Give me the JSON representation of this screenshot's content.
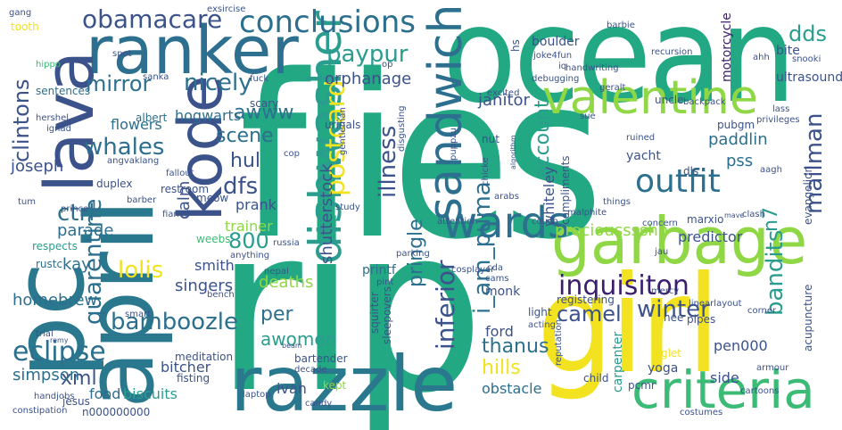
{
  "palette": {
    "background": "#ffffff",
    "yellow": "#f2e21f",
    "lime": "#8fd744",
    "green": "#3bbb75",
    "teal": "#23a884",
    "cyan": "#2a9d8f",
    "blue": "#2e6e8e",
    "indigo": "#3b528b",
    "purple": "#472c7a",
    "darkpurple": "#440154"
  },
  "words": [
    {
      "text": "flies",
      "color": "#23a884"
    },
    {
      "text": "rip",
      "color": "#23a884"
    },
    {
      "text": "ocean",
      "color": "#23a884"
    },
    {
      "text": "pc",
      "color": "#2a788e"
    },
    {
      "text": "april",
      "color": "#2a788e"
    },
    {
      "text": "girl",
      "color": "#f2e21f"
    },
    {
      "text": "ranker",
      "color": "#2c6f8e"
    },
    {
      "text": "razzle",
      "color": "#2a788e"
    },
    {
      "text": "garbage",
      "color": "#8fd744"
    },
    {
      "text": "kode",
      "color": "#3b528b"
    },
    {
      "text": "lava",
      "color": "#3b528b"
    },
    {
      "text": "criteria",
      "color": "#3bbb75"
    },
    {
      "text": "valentine",
      "color": "#8fd744"
    },
    {
      "text": "sandwich",
      "color": "#2c6f8e"
    },
    {
      "text": "dishwasher",
      "color": "#2a9d8f"
    },
    {
      "text": "wards",
      "color": "#2c6f8e"
    },
    {
      "text": "conclusions",
      "color": "#2c6f8e"
    },
    {
      "text": "obamacare",
      "color": "#3b528b"
    },
    {
      "text": "postcard",
      "color": "#f2e21f"
    },
    {
      "text": "outfit",
      "color": "#2c6f8e"
    },
    {
      "text": "inquisiton",
      "color": "#3b1f6e"
    },
    {
      "text": "eclipse",
      "color": "#2c6f8e"
    },
    {
      "text": "bamboozle",
      "color": "#2c6f8e"
    },
    {
      "text": "quarentine",
      "color": "#2c6f8e"
    },
    {
      "text": "clintons",
      "color": "#3b528b"
    },
    {
      "text": "i_am_puma",
      "color": "#2c6f8e"
    },
    {
      "text": "illness",
      "color": "#3b528b"
    },
    {
      "text": "inferior",
      "color": "#3b528b"
    },
    {
      "text": "paypur",
      "color": "#2a9d8f"
    },
    {
      "text": "nicely",
      "color": "#2c6f8e"
    },
    {
      "text": "mirror",
      "color": "#2c6f8e"
    },
    {
      "text": "awww",
      "color": "#2c6f8e"
    },
    {
      "text": "whales",
      "color": "#2c6f8e"
    },
    {
      "text": "scene",
      "color": "#2c6f8e"
    },
    {
      "text": "hul",
      "color": "#3b528b"
    },
    {
      "text": "dfs",
      "color": "#3b528b"
    },
    {
      "text": "800",
      "color": "#2a9d8f"
    },
    {
      "text": "lolis",
      "color": "#f2e21f"
    },
    {
      "text": "ctrl",
      "color": "#2c6f8e"
    },
    {
      "text": "camel",
      "color": "#3b528b"
    },
    {
      "text": "winter",
      "color": "#3b528b"
    },
    {
      "text": "bandits",
      "color": "#2a9d8f"
    },
    {
      "text": "mailman",
      "color": "#3b528b"
    },
    {
      "text": "n7",
      "color": "#2a9d8f"
    },
    {
      "text": "account",
      "color": "#2a9d8f"
    },
    {
      "text": "xml",
      "color": "#3b528b"
    },
    {
      "text": "hills",
      "color": "#f2e21f"
    },
    {
      "text": "thanus",
      "color": "#2c6f8e"
    },
    {
      "text": "awomen",
      "color": "#2a9d8f"
    },
    {
      "text": "per",
      "color": "#2c6f8e"
    },
    {
      "text": "pringle",
      "color": "#2c6f8e"
    },
    {
      "text": "preciousssshh",
      "color": "#8fd744"
    },
    {
      "text": "dds",
      "color": "#2a9d8f"
    },
    {
      "text": "hogwarts",
      "color": "#2c6f8e"
    },
    {
      "text": "orphanage",
      "color": "#3b528b"
    },
    {
      "text": "janitor",
      "color": "#3b528b"
    },
    {
      "text": "paddlin",
      "color": "#2c6f8e"
    },
    {
      "text": "pss",
      "color": "#2c6f8e"
    },
    {
      "text": "flowers",
      "color": "#2c6f8e"
    },
    {
      "text": "joseph",
      "color": "#3b528b"
    },
    {
      "text": "kay",
      "color": "#2c6f8e"
    },
    {
      "text": "parade",
      "color": "#2c6f8e"
    },
    {
      "text": "homebrew",
      "color": "#2c6f8e"
    },
    {
      "text": "simpson",
      "color": "#2c6f8e"
    },
    {
      "text": "biscuits",
      "color": "#2a9d8f"
    },
    {
      "text": "bitcher",
      "color": "#3b528b"
    },
    {
      "text": "deaths",
      "color": "#8fd744"
    },
    {
      "text": "singers",
      "color": "#3b528b"
    },
    {
      "text": "smith",
      "color": "#3b528b"
    },
    {
      "text": "trainer",
      "color": "#8fd744"
    },
    {
      "text": "calm",
      "color": "#3b528b"
    },
    {
      "text": "prank",
      "color": "#3b528b"
    },
    {
      "text": "shutterstock",
      "color": "#3b528b"
    },
    {
      "text": "ford",
      "color": "#3b528b"
    },
    {
      "text": "obstacle",
      "color": "#2c6f8e"
    },
    {
      "text": "pen000",
      "color": "#3b528b"
    },
    {
      "text": "side",
      "color": "#3b528b"
    },
    {
      "text": "yoga",
      "color": "#3b528b"
    },
    {
      "text": "predictor",
      "color": "#3b528b"
    },
    {
      "text": "ivan",
      "color": "#3b528b"
    },
    {
      "text": "food",
      "color": "#2c6f8e"
    },
    {
      "text": "printf",
      "color": "#2c6f8e"
    },
    {
      "text": "monk",
      "color": "#3b528b"
    },
    {
      "text": "light",
      "color": "#3b528b"
    },
    {
      "text": "registering",
      "color": "#3b528b"
    },
    {
      "text": "whiteley",
      "color": "#3b528b"
    },
    {
      "text": "compliments",
      "color": "#3b528b"
    },
    {
      "text": "carpenter",
      "color": "#2a9d8f"
    },
    {
      "text": "hee",
      "color": "#3b528b"
    },
    {
      "text": "pcmr",
      "color": "#3b528b"
    },
    {
      "text": "acupuncture",
      "color": "#3b528b"
    },
    {
      "text": "ultrasound",
      "color": "#3b528b"
    },
    {
      "text": "motorcycle",
      "color": "#3b1f6e"
    },
    {
      "text": "bite",
      "color": "#3b528b"
    },
    {
      "text": "boulder",
      "color": "#3b528b"
    },
    {
      "text": "uncle",
      "color": "#3b528b"
    },
    {
      "text": "marxio",
      "color": "#3b528b"
    },
    {
      "text": "yacht",
      "color": "#3b528b"
    },
    {
      "text": "dls",
      "color": "#3b528b"
    },
    {
      "text": "pubgm",
      "color": "#3b528b"
    },
    {
      "text": "evangelion",
      "color": "#3b528b"
    },
    {
      "text": "sentences",
      "color": "#2c6f8e"
    },
    {
      "text": "tooth",
      "color": "#f2e21f"
    },
    {
      "text": "albert",
      "color": "#2c6f8e"
    },
    {
      "text": "scary",
      "color": "#3b528b"
    },
    {
      "text": "urinals",
      "color": "#3b528b"
    },
    {
      "text": "restroom",
      "color": "#3b528b"
    },
    {
      "text": "meow",
      "color": "#3b528b"
    },
    {
      "text": "weebs",
      "color": "#3bbb75"
    },
    {
      "text": "respects",
      "color": "#2a9d8f"
    },
    {
      "text": "duplex",
      "color": "#3b528b"
    },
    {
      "text": "rustc",
      "color": "#2c6f8e"
    },
    {
      "text": "meditation",
      "color": "#3b528b"
    },
    {
      "text": "fisting",
      "color": "#3b528b"
    },
    {
      "text": "bartender",
      "color": "#3b528b"
    },
    {
      "text": "squirter",
      "color": "#3b528b"
    },
    {
      "text": "sleepovers",
      "color": "#3b528b"
    },
    {
      "text": "n000000000",
      "color": "#3b528b"
    },
    {
      "text": "jesus",
      "color": "#3b528b"
    },
    {
      "text": "handjobs",
      "color": "#3b528b"
    },
    {
      "text": "constipation",
      "color": "#3b528b"
    },
    {
      "text": "candy",
      "color": "#3b528b"
    },
    {
      "text": "decade",
      "color": "#3b528b"
    },
    {
      "text": "kept",
      "color": "#8fd744"
    },
    {
      "text": "pipes",
      "color": "#3b528b"
    },
    {
      "text": "piglet",
      "color": "#f2e21f"
    },
    {
      "text": "child",
      "color": "#3b528b"
    },
    {
      "text": "armour",
      "color": "#3b528b"
    },
    {
      "text": "costumes",
      "color": "#3b528b"
    },
    {
      "text": "exsircise",
      "color": "#3b528b"
    },
    {
      "text": "gang",
      "color": "#3b528b"
    },
    {
      "text": "spot",
      "color": "#3b528b"
    },
    {
      "text": "hippo",
      "color": "#3bbb75"
    },
    {
      "text": "hershel",
      "color": "#3b528b"
    },
    {
      "text": "ignad",
      "color": "#3b528b"
    },
    {
      "text": "angvaklang",
      "color": "#3b528b"
    },
    {
      "text": "tum",
      "color": "#3b528b"
    },
    {
      "text": "barber",
      "color": "#3b528b"
    },
    {
      "text": "trial",
      "color": "#3b528b"
    },
    {
      "text": "smart",
      "color": "#3b528b"
    },
    {
      "text": "nepal",
      "color": "#3b528b"
    },
    {
      "text": "anything",
      "color": "#3b528b"
    },
    {
      "text": "fallout",
      "color": "#3b528b"
    },
    {
      "text": "cop",
      "color": "#3b528b"
    },
    {
      "text": "gentleman",
      "color": "#3b528b"
    },
    {
      "text": "disgusting",
      "color": "#3b528b"
    },
    {
      "text": "fuck",
      "color": "#3b528b"
    },
    {
      "text": "op",
      "color": "#3b528b"
    },
    {
      "text": "puppzu",
      "color": "#3b528b"
    },
    {
      "text": "nut",
      "color": "#3b528b"
    },
    {
      "text": "chicke",
      "color": "#3b528b"
    },
    {
      "text": "cda",
      "color": "#3b528b"
    },
    {
      "text": "arabs",
      "color": "#3b528b"
    },
    {
      "text": "attention",
      "color": "#3b528b"
    },
    {
      "text": "couch",
      "color": "#3b528b"
    },
    {
      "text": "cams",
      "color": "#3b528b"
    },
    {
      "text": "pint",
      "color": "#3b528b"
    },
    {
      "text": "cosplayer",
      "color": "#3b528b"
    },
    {
      "text": "acting",
      "color": "#3b528b"
    },
    {
      "text": "reputation",
      "color": "#3b528b"
    },
    {
      "text": "malphite",
      "color": "#3b528b"
    },
    {
      "text": "handwriting",
      "color": "#3b528b"
    },
    {
      "text": "joke4fun",
      "color": "#3b528b"
    },
    {
      "text": "iq",
      "color": "#3b528b"
    },
    {
      "text": "debugging",
      "color": "#3b528b"
    },
    {
      "text": "excited",
      "color": "#3b528b"
    },
    {
      "text": "sue",
      "color": "#3b528b"
    },
    {
      "text": "hs",
      "color": "#3b528b"
    },
    {
      "text": "barbie",
      "color": "#3b528b"
    },
    {
      "text": "recursion",
      "color": "#3b528b"
    },
    {
      "text": "geralt",
      "color": "#3b528b"
    },
    {
      "text": "backpack",
      "color": "#3b528b"
    },
    {
      "text": "ahh",
      "color": "#3b528b"
    },
    {
      "text": "snooki",
      "color": "#3b528b"
    },
    {
      "text": "lass",
      "color": "#3b528b"
    },
    {
      "text": "privileges",
      "color": "#3b528b"
    },
    {
      "text": "aagh",
      "color": "#3b528b"
    },
    {
      "text": "clash",
      "color": "#3b528b"
    },
    {
      "text": "concern",
      "color": "#3b528b"
    },
    {
      "text": "jau",
      "color": "#3b528b"
    },
    {
      "text": "mercy",
      "color": "#3b528b"
    },
    {
      "text": "linearlayout",
      "color": "#3b528b"
    },
    {
      "text": "corner",
      "color": "#3b528b"
    },
    {
      "text": "cartoons",
      "color": "#3b528b"
    },
    {
      "text": "ruined",
      "color": "#3b528b"
    },
    {
      "text": "things",
      "color": "#3b528b"
    },
    {
      "text": "prince",
      "color": "#3b528b"
    },
    {
      "text": "sanka",
      "color": "#3b528b"
    },
    {
      "text": "laptop",
      "color": "#3b528b"
    },
    {
      "text": "bench",
      "color": "#3b528b"
    },
    {
      "text": "parking",
      "color": "#3b528b"
    },
    {
      "text": "russia",
      "color": "#3b528b"
    },
    {
      "text": "study",
      "color": "#3b528b"
    },
    {
      "text": "fiancé",
      "color": "#3b528b"
    },
    {
      "text": "algorithm",
      "color": "#3b528b"
    },
    {
      "text": "mave",
      "color": "#3b528b"
    },
    {
      "text": "remy",
      "color": "#3b528b"
    },
    {
      "text": "beam",
      "color": "#3b528b"
    }
  ]
}
